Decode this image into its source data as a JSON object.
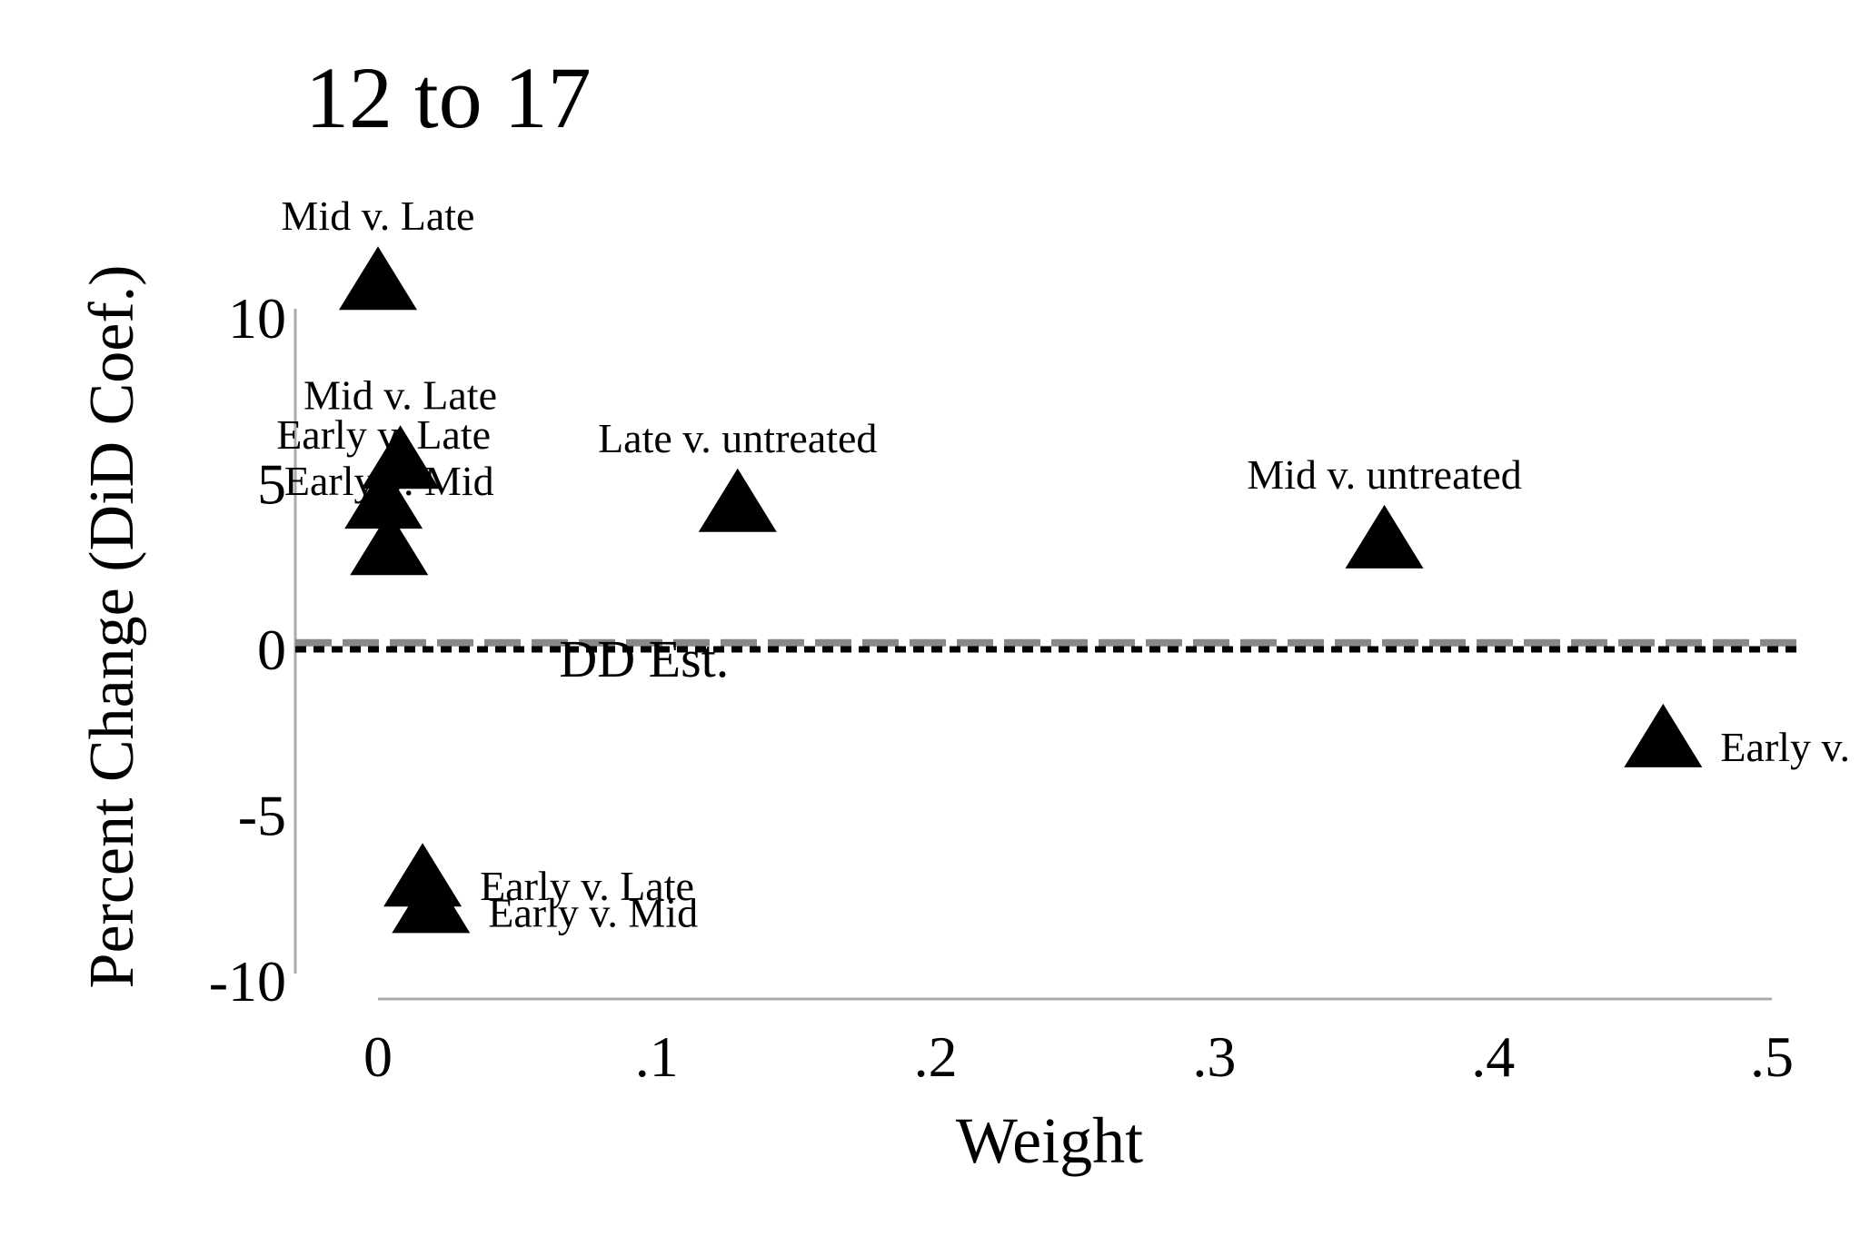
{
  "chart_data": {
    "type": "scatter",
    "title": "12 to 17",
    "xlabel": "Weight",
    "ylabel": "Percent Change (DiD Coef.)",
    "xlim": [
      -0.03,
      0.51
    ],
    "ylim": [
      -10,
      10
    ],
    "x_ticks": [
      {
        "value": 0,
        "label": "0"
      },
      {
        "value": 0.1,
        "label": ".1"
      },
      {
        "value": 0.2,
        "label": ".2"
      },
      {
        "value": 0.3,
        "label": ".3"
      },
      {
        "value": 0.4,
        "label": ".4"
      },
      {
        "value": 0.5,
        "label": ".5"
      }
    ],
    "y_ticks": [
      {
        "value": 10,
        "label": "10"
      },
      {
        "value": 5,
        "label": "5"
      },
      {
        "value": 0,
        "label": "0"
      },
      {
        "value": -5,
        "label": "-5"
      },
      {
        "value": -10,
        "label": "-10"
      }
    ],
    "grid": false,
    "legend": "none",
    "marker": "triangle",
    "marker_color": "#000000",
    "points": [
      {
        "x": 0.0,
        "y": 11.2,
        "label": "Mid v. Late",
        "label_pos": "above"
      },
      {
        "x": 0.008,
        "y": 5.8,
        "label": "Mid v. Late",
        "label_pos": "above"
      },
      {
        "x": 0.002,
        "y": 4.6,
        "label": "Early v. Late",
        "label_pos": "above"
      },
      {
        "x": 0.004,
        "y": 3.2,
        "label": "Early v. Mid",
        "label_pos": "above"
      },
      {
        "x": 0.129,
        "y": 4.5,
        "label": "Late v. untreated",
        "label_pos": "above"
      },
      {
        "x": 0.361,
        "y": 3.4,
        "label": "Mid v. untreated",
        "label_pos": "above"
      },
      {
        "x": 0.461,
        "y": -2.6,
        "label": "Early v.",
        "label_pos": "right"
      },
      {
        "x": 0.016,
        "y": -6.8,
        "label": "Early v. Late",
        "label_pos": "right"
      },
      {
        "x": 0.019,
        "y": -7.6,
        "label": "Early v. Mid",
        "label_pos": "right"
      }
    ],
    "reference_lines": [
      {
        "orientation": "horizontal",
        "y": 0.2,
        "style": "dashed",
        "color": "#888888"
      },
      {
        "orientation": "horizontal",
        "y": 0.0,
        "style": "dotted",
        "color": "#000000"
      }
    ],
    "annotations": [
      {
        "text": "DD Est.",
        "x": 0.065,
        "y": 0.0
      }
    ]
  }
}
